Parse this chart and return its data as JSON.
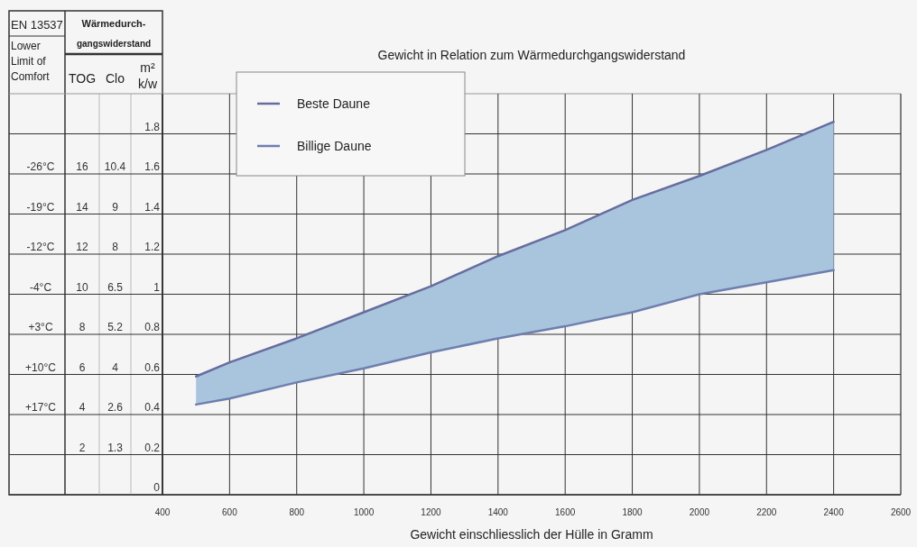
{
  "chart_data": {
    "type": "line",
    "title": "Gewicht in Relation zum Wärmedurchgangswiderstand",
    "xlabel": "Gewicht einschliesslich der Hülle in Gramm",
    "ylabel": "m² k/w",
    "y2label": "TOG",
    "y3label": "Clo",
    "annotations": [
      "EN 13537",
      "Wärmedurch-gangswiderstand",
      "Lower Limit of Comfort",
      "+17°C",
      "+10°C",
      "+3°C",
      "-4°C",
      "-12°C",
      "-19°C",
      "-26°C"
    ],
    "x": [
      500,
      600,
      800,
      1000,
      1200,
      1400,
      1600,
      1800,
      2000,
      2200,
      2400
    ],
    "series": [
      {
        "name": "Beste Daune",
        "color": "#676d9e",
        "values": [
          0.59,
          0.66,
          0.78,
          0.91,
          1.04,
          1.19,
          1.32,
          1.47,
          1.59,
          1.72,
          1.86
        ],
        "lower": [
          0.45,
          0.48,
          0.56,
          0.63,
          0.71,
          0.78,
          0.84,
          0.91,
          1.0,
          1.06,
          1.12
        ],
        "upper": [
          0.59,
          0.66,
          0.78,
          0.91,
          1.04,
          1.19,
          1.32,
          1.47,
          1.59,
          1.72,
          1.86
        ]
      },
      {
        "name": "Billige Daune",
        "color": "#6e7eae",
        "values": [
          0.45,
          0.48,
          0.56,
          0.63,
          0.71,
          0.78,
          0.84,
          0.91,
          1.0,
          1.06,
          1.12
        ]
      }
    ],
    "xlim": [
      400,
      2600
    ],
    "xticks": [
      400,
      600,
      800,
      1000,
      1200,
      1400,
      1600,
      1800,
      2000,
      2200,
      2400,
      2600
    ],
    "ylim": [
      0,
      2.0
    ],
    "yticks": [
      0,
      0.2,
      0.4,
      0.6,
      0.8,
      1,
      1.2,
      1.4,
      1.6,
      1.8
    ],
    "y2lim": [
      0,
      20
    ],
    "y2ticks": [
      2,
      4,
      6,
      8,
      10,
      12,
      14,
      16
    ],
    "y3lim": [
      0,
      13
    ],
    "y3ticks": [
      {
        "value": 1.3,
        "label": "1.3"
      },
      {
        "value": 2.6,
        "label": "2.6"
      },
      {
        "value": 3.9,
        "label": "4"
      },
      {
        "value": 5.2,
        "label": "5.2"
      },
      {
        "value": 6.5,
        "label": "6.5"
      },
      {
        "value": 7.8,
        "label": "8"
      },
      {
        "value": 9.1,
        "label": "9"
      },
      {
        "value": 10.4,
        "label": "10.4"
      }
    ],
    "grid": true,
    "legend": "top left"
  }
}
